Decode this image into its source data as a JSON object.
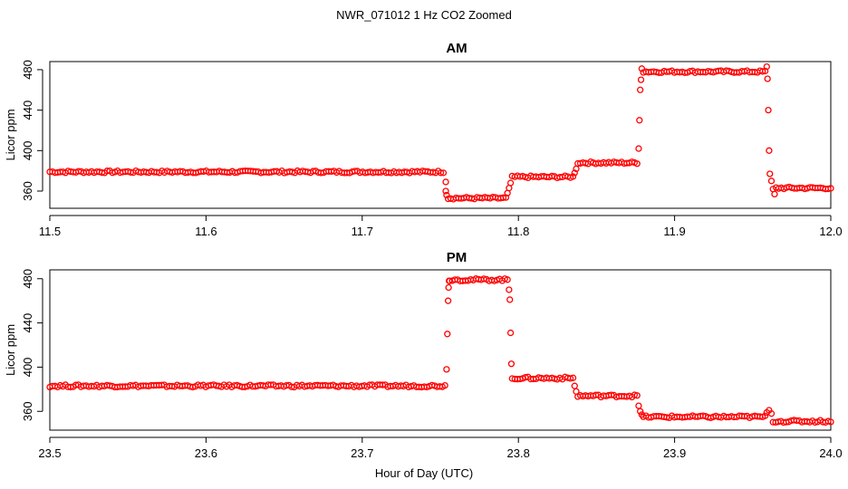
{
  "figure": {
    "title": "NWR_071012  1 Hz CO2 Zoomed",
    "xlabel": "Hour of Day (UTC)"
  },
  "chart_data": [
    {
      "type": "scatter",
      "title": "AM",
      "xlabel": "Hour of Day (UTC)",
      "ylabel": "Licor ppm",
      "xlim": [
        11.5,
        12.0
      ],
      "ylim": [
        343,
        488
      ],
      "xticks": [
        "11.5",
        "11.6",
        "11.7",
        "11.8",
        "11.9",
        "12.0"
      ],
      "yticks": [
        "360",
        "400",
        "440",
        "480"
      ],
      "color": "#ff0000",
      "series": [
        {
          "name": "CO2",
          "x": [
            11.5,
            11.752
          ],
          "y": [
            379,
            379
          ]
        },
        {
          "name": "CO2",
          "x": [
            11.7535,
            11.7535,
            11.754
          ],
          "y": [
            369,
            360,
            356
          ]
        },
        {
          "name": "CO2",
          "x": [
            11.755,
            11.792
          ],
          "y": [
            353,
            353
          ]
        },
        {
          "name": "CO2",
          "x": [
            11.793,
            11.794,
            11.795
          ],
          "y": [
            358,
            363,
            368
          ]
        },
        {
          "name": "CO2",
          "x": [
            11.796,
            11.835
          ],
          "y": [
            374,
            374
          ]
        },
        {
          "name": "CO2",
          "x": [
            11.836,
            11.837
          ],
          "y": [
            378,
            382
          ]
        },
        {
          "name": "CO2",
          "x": [
            11.838,
            11.876
          ],
          "y": [
            388,
            388
          ]
        },
        {
          "name": "CO2",
          "x": [
            11.877,
            11.8775,
            11.878,
            11.8785,
            11.879
          ],
          "y": [
            402,
            430,
            460,
            470,
            481
          ]
        },
        {
          "name": "CO2",
          "x": [
            11.88,
            11.958
          ],
          "y": [
            478,
            478
          ]
        },
        {
          "name": "CO2",
          "x": [
            11.959,
            11.9595,
            11.96,
            11.9605,
            11.961,
            11.962,
            11.963,
            11.964
          ],
          "y": [
            483,
            471,
            440,
            400,
            377,
            370,
            362,
            357
          ]
        },
        {
          "name": "CO2",
          "x": [
            11.965,
            12.0
          ],
          "y": [
            363,
            363
          ]
        }
      ]
    },
    {
      "type": "scatter",
      "title": "PM",
      "xlabel": "Hour of Day (UTC)",
      "ylabel": "Licor ppm",
      "xlim": [
        23.5,
        24.0
      ],
      "ylim": [
        343,
        488
      ],
      "xticks": [
        "23.5",
        "23.6",
        "23.7",
        "23.8",
        "23.9",
        "24.0"
      ],
      "yticks": [
        "360",
        "400",
        "440",
        "480"
      ],
      "color": "#ff0000",
      "series": [
        {
          "name": "CO2",
          "x": [
            23.5,
            23.753
          ],
          "y": [
            383,
            383
          ]
        },
        {
          "name": "CO2",
          "x": [
            23.754,
            23.7545,
            23.755,
            23.7553,
            23.7556
          ],
          "y": [
            398,
            430,
            460,
            472,
            478
          ]
        },
        {
          "name": "CO2",
          "x": [
            23.756,
            23.793
          ],
          "y": [
            479,
            479
          ]
        },
        {
          "name": "CO2",
          "x": [
            23.794,
            23.7945,
            23.795,
            23.7955
          ],
          "y": [
            470,
            461,
            431,
            403
          ]
        },
        {
          "name": "CO2",
          "x": [
            23.796,
            23.835
          ],
          "y": [
            390,
            390
          ]
        },
        {
          "name": "CO2",
          "x": [
            23.836,
            23.837
          ],
          "y": [
            383,
            378
          ]
        },
        {
          "name": "CO2",
          "x": [
            23.838,
            23.876
          ],
          "y": [
            374,
            374
          ]
        },
        {
          "name": "CO2",
          "x": [
            23.877,
            23.878,
            23.879
          ],
          "y": [
            365,
            360,
            357
          ]
        },
        {
          "name": "CO2",
          "x": [
            23.88,
            23.958
          ],
          "y": [
            355,
            355
          ]
        },
        {
          "name": "CO2",
          "x": [
            23.959,
            23.9605,
            23.962
          ],
          "y": [
            359,
            361,
            358
          ]
        },
        {
          "name": "CO2",
          "x": [
            23.963,
            24.0
          ],
          "y": [
            351,
            351
          ]
        }
      ]
    }
  ]
}
